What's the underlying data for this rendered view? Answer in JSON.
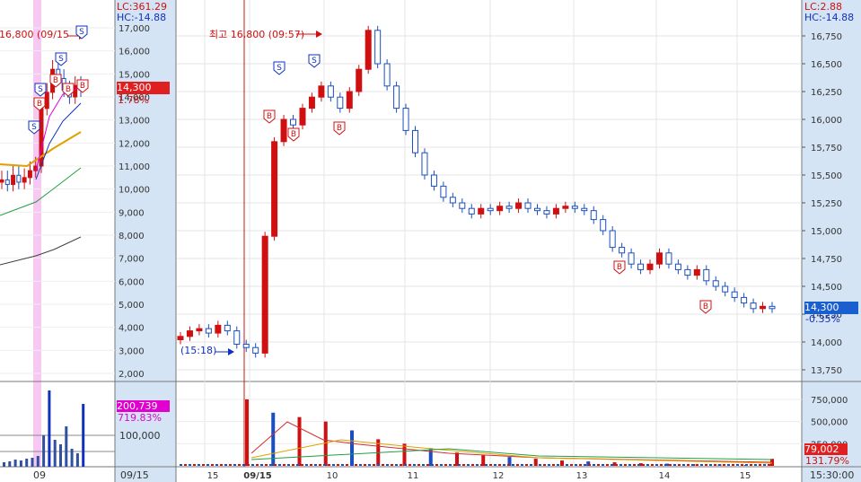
{
  "left_panel": {
    "lc_label": "LC:361.29",
    "hc_label": "HC:-14.88",
    "peak_label": "16,800 (09/15",
    "price_ticks": [
      "17,000",
      "16,000",
      "15,000",
      "14,000",
      "13,000",
      "12,000",
      "11,000",
      "10,000",
      "9,000",
      "8,000",
      "7,000",
      "6,000",
      "5,000",
      "4,000",
      "3,000",
      "2,000"
    ],
    "current_price": "14,300",
    "current_change": "1.78%",
    "volume_tick": "100,000",
    "volume_value": "200,739",
    "volume_pct": "719.83%",
    "date_ticks": [
      "09"
    ],
    "date_label": "09/15"
  },
  "right_panel": {
    "lc_label": "LC:2.88",
    "hc_label": "HC:-14.88",
    "peak_label": "최고 16,800 (09:57)",
    "open_label": "(15:18)",
    "current_price": "14,300",
    "current_change": "-0.35%",
    "volume_value": "79,002",
    "volume_pct": "131.79%",
    "time_label": "15:30:00",
    "markers": [
      "S",
      "B"
    ]
  },
  "colors": {
    "up": "#d01010",
    "down": "#1a4fc0",
    "ma_short": "#e0a000",
    "ma_long": "#20a040",
    "ma_dark": "#404040",
    "mag": "#e000e0",
    "price_box": "#1a5fd0",
    "vol_box": "#e000d0",
    "axis_bg": "#d4e4f4"
  },
  "chart_data": {
    "type": "candlestick",
    "intraday": {
      "y_ticks": [
        16750,
        16500,
        16250,
        16000,
        15750,
        15500,
        15250,
        15000,
        14750,
        14500,
        14250,
        14000,
        13750
      ],
      "ylim": [
        13630,
        16900
      ],
      "x_ticks": [
        "15",
        "09/15",
        "10",
        "11",
        "12",
        "13",
        "14",
        "15"
      ],
      "close_series": [
        14050,
        14100,
        14120,
        14080,
        14150,
        14100,
        13980,
        13950,
        13900,
        14950,
        15800,
        16000,
        15950,
        16100,
        16200,
        16300,
        16200,
        16100,
        16250,
        16450,
        16800,
        16500,
        16300,
        16100,
        15900,
        15700,
        15500,
        15400,
        15300,
        15250,
        15200,
        15150,
        15200,
        15180,
        15220,
        15200,
        15250,
        15200,
        15180,
        15150,
        15200,
        15220,
        15200,
        15180,
        15100,
        15000,
        14850,
        14800,
        14700,
        14650,
        14700,
        14800,
        14700,
        14650,
        14600,
        14650,
        14550,
        14500,
        14450,
        14400,
        14350,
        14300,
        14320,
        14300
      ],
      "volume": [
        750000,
        600000,
        550000,
        500000,
        400000,
        300000,
        250000,
        200000,
        150000,
        120000,
        100000,
        80000,
        60000,
        50000,
        40000,
        30000,
        25000,
        20000,
        15000,
        10000,
        79002
      ],
      "volume_ticks": [
        "750,000",
        "500,000",
        "250,000"
      ]
    },
    "daily": {
      "y_ticks": [
        17000,
        16000,
        15000,
        14000,
        13000,
        12000,
        11000,
        10000,
        9000,
        8000,
        7000,
        6000,
        5000,
        4000,
        3000,
        2000
      ],
      "ylim": [
        1500,
        17300
      ],
      "close_series": [
        10400,
        10200,
        10600,
        10300,
        10500,
        10800,
        11000,
        13500,
        14200,
        15200,
        14800,
        14300,
        14000,
        14500,
        14300
      ]
    }
  }
}
